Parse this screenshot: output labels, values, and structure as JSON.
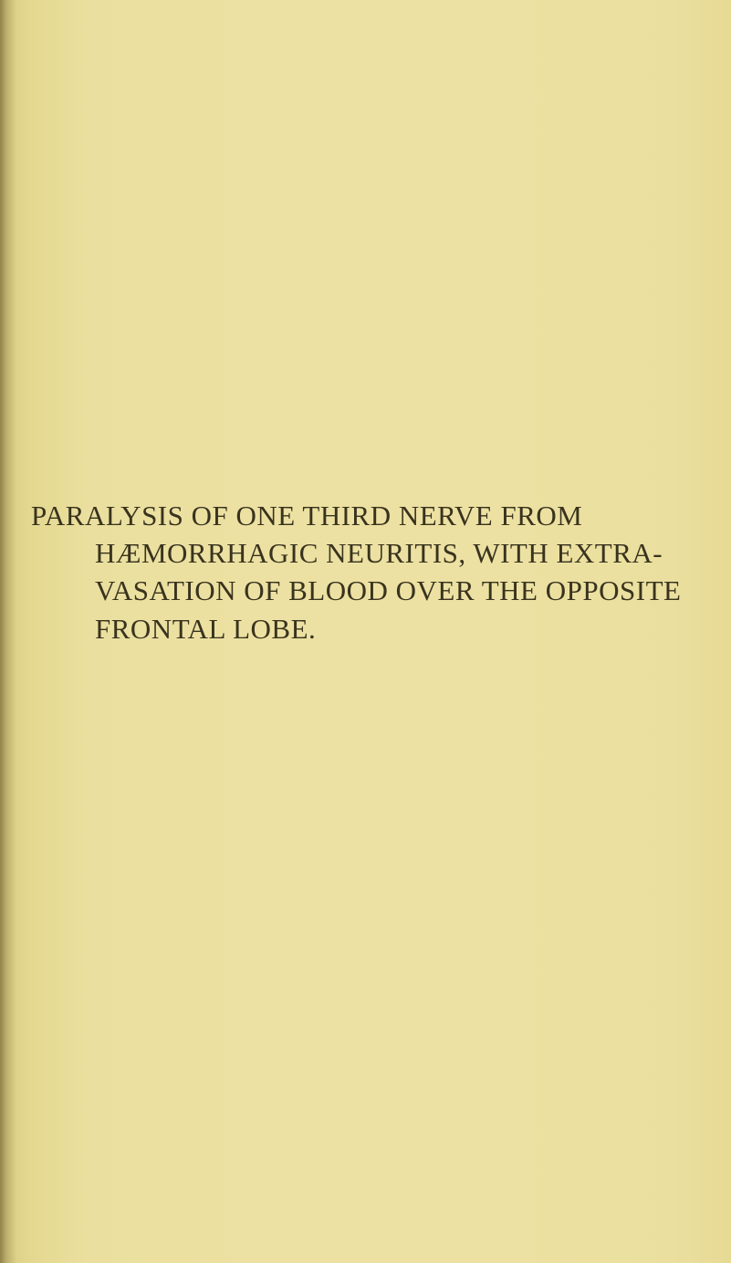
{
  "page": {
    "background_color": "#e8dd9a",
    "text_color": "#39331e",
    "font_family": "Times New Roman",
    "font_size_pt": 23,
    "title_lines": [
      "PARALYSIS OF ONE THIRD NERVE FROM",
      "HÆMORRHAGIC NEURITIS, WITH EXTRA-",
      "VASATION OF BLOOD OVER THE OPPOSITE",
      "FRONTAL LOBE."
    ]
  }
}
